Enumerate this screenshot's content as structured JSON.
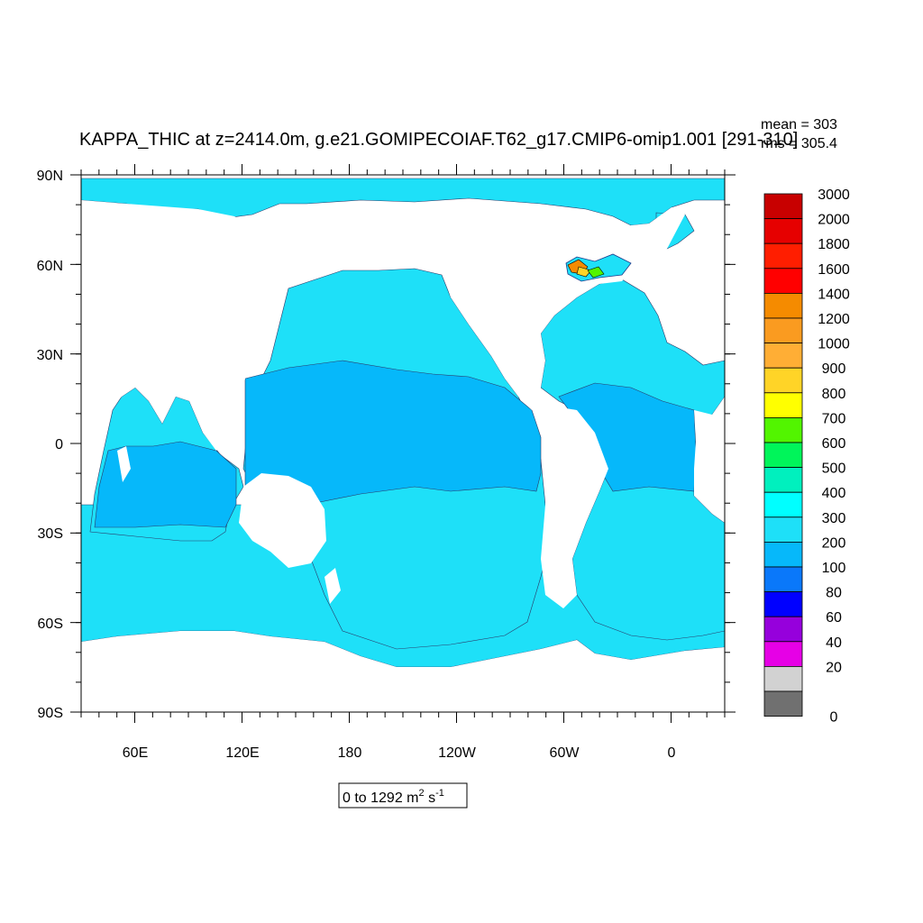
{
  "plot": {
    "title": "KAPPA_THIC at z=2414.0m, g.e21.GOMIPECOIAF.T62_g17.CMIP6-omip1.001 [291-310]",
    "mean_text": "mean = 303",
    "rms_text": "rms = 305.4",
    "range_prefix": "0 to 1292 m",
    "range_sup1": "2",
    "range_mid": " s",
    "range_sup2": "-1"
  },
  "map": {
    "projection": "cylindrical-equidistant",
    "center_lon": 200,
    "lon_range": [
      30,
      390
    ],
    "lat_range": [
      -90,
      90
    ],
    "lat_ticks": [
      "90N",
      "60N",
      "30N",
      "0",
      "30S",
      "60S",
      "90S"
    ],
    "lon_ticks": [
      "60E",
      "120E",
      "180",
      "120W",
      "60W",
      "0"
    ],
    "colors": {
      "land": "#ffffff",
      "ocean_main": "#1ee0f8",
      "tropical_band": "#06b8fa",
      "band_200": "#0a78fa",
      "hotspot_orange": "#f58b00",
      "hotspot_yellow": "#ffd427",
      "hotspot_green": "#52f500"
    }
  },
  "colorbar": {
    "levels": [
      {
        "label": "3000",
        "color": "#c80000"
      },
      {
        "label": "2000",
        "color": "#e60000"
      },
      {
        "label": "1800",
        "color": "#ff1e00"
      },
      {
        "label": "1600",
        "color": "#ff0000"
      },
      {
        "label": "1400",
        "color": "#f58b00"
      },
      {
        "label": "1200",
        "color": "#fa9b20"
      },
      {
        "label": "1000",
        "color": "#ffae35"
      },
      {
        "label": "900",
        "color": "#ffd427"
      },
      {
        "label": "800",
        "color": "#ffff00"
      },
      {
        "label": "700",
        "color": "#52f500"
      },
      {
        "label": "600",
        "color": "#00f55a"
      },
      {
        "label": "500",
        "color": "#00f0be"
      },
      {
        "label": "400",
        "color": "#00ffff"
      },
      {
        "label": "300",
        "color": "#1ee0f8"
      },
      {
        "label": "200",
        "color": "#06b8fa"
      },
      {
        "label": "100",
        "color": "#0a78fa"
      },
      {
        "label": "80",
        "color": "#0000ff"
      },
      {
        "label": "60",
        "color": "#9600dc"
      },
      {
        "label": "40",
        "color": "#e600e6"
      },
      {
        "label": "20",
        "color": "#d2d2d2"
      },
      {
        "label": "",
        "color": "#707070"
      }
    ],
    "bottom_label": "0"
  }
}
